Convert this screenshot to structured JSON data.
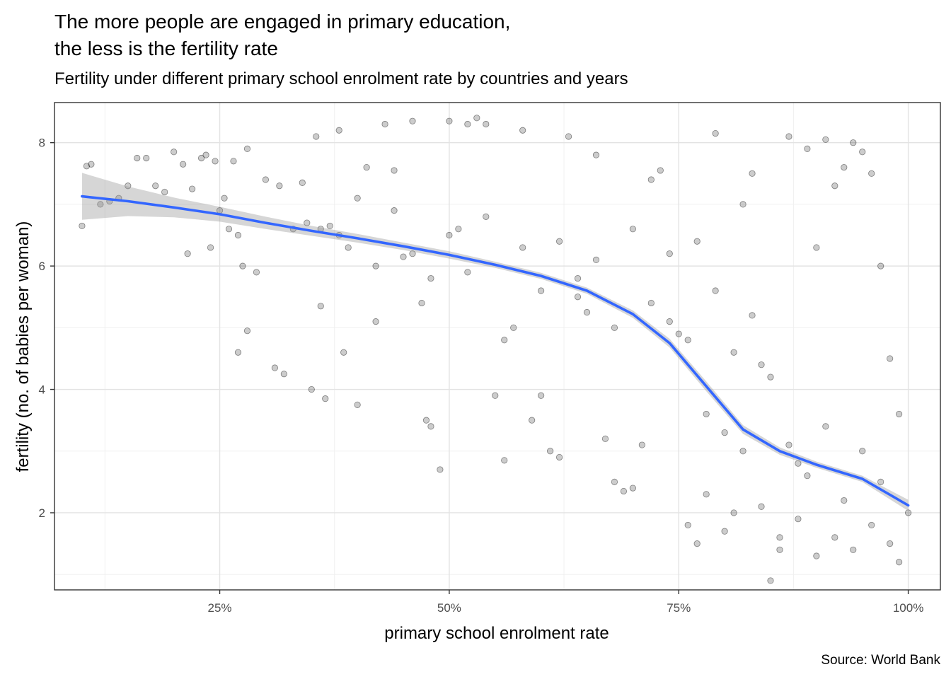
{
  "chart": {
    "title": "The more people are engaged in primary education,\nthe less is the fertility rate",
    "subtitle": "Fertility under different primary school enrolment rate by countries and years",
    "caption": "Source: World Bank"
  },
  "chart_data": {
    "type": "scatter",
    "title": "The more people are engaged in primary education,\nthe less is the fertility rate",
    "subtitle": "Fertility under different primary school enrolment rate by countries and years",
    "xlabel": "primary school enrolment rate",
    "ylabel": "fertility (no. of babies per woman)",
    "xlim": [
      0.07,
      1.035
    ],
    "ylim": [
      0.75,
      8.65
    ],
    "x_ticks": [
      0.25,
      0.5,
      0.75,
      1.0
    ],
    "x_tick_labels": [
      "25%",
      "50%",
      "75%",
      "100%"
    ],
    "y_ticks": [
      2,
      4,
      6,
      8
    ],
    "y_tick_labels": [
      "2",
      "4",
      "6",
      "8"
    ],
    "grid": true,
    "point_color": "#000000",
    "point_opacity": 0.2,
    "smooth_color": "#3366FF",
    "band_color": "#999999",
    "points": [
      [
        0.1,
        6.65
      ],
      [
        0.105,
        7.62
      ],
      [
        0.11,
        7.65
      ],
      [
        0.12,
        7.0
      ],
      [
        0.13,
        7.05
      ],
      [
        0.14,
        7.1
      ],
      [
        0.15,
        7.3
      ],
      [
        0.16,
        7.75
      ],
      [
        0.17,
        7.75
      ],
      [
        0.18,
        7.3
      ],
      [
        0.19,
        7.2
      ],
      [
        0.2,
        7.85
      ],
      [
        0.21,
        7.65
      ],
      [
        0.215,
        6.2
      ],
      [
        0.22,
        7.25
      ],
      [
        0.23,
        7.75
      ],
      [
        0.235,
        7.8
      ],
      [
        0.24,
        6.3
      ],
      [
        0.245,
        7.7
      ],
      [
        0.25,
        6.9
      ],
      [
        0.255,
        7.1
      ],
      [
        0.26,
        6.6
      ],
      [
        0.265,
        7.7
      ],
      [
        0.27,
        6.5
      ],
      [
        0.275,
        6.0
      ],
      [
        0.28,
        7.9
      ],
      [
        0.29,
        5.9
      ],
      [
        0.27,
        4.6
      ],
      [
        0.28,
        4.95
      ],
      [
        0.3,
        7.4
      ],
      [
        0.31,
        4.35
      ],
      [
        0.315,
        7.3
      ],
      [
        0.32,
        4.25
      ],
      [
        0.33,
        6.6
      ],
      [
        0.34,
        7.35
      ],
      [
        0.345,
        6.7
      ],
      [
        0.35,
        4.0
      ],
      [
        0.355,
        8.1
      ],
      [
        0.36,
        5.35
      ],
      [
        0.365,
        3.85
      ],
      [
        0.37,
        6.65
      ],
      [
        0.38,
        8.2
      ],
      [
        0.385,
        4.6
      ],
      [
        0.39,
        6.3
      ],
      [
        0.4,
        3.75
      ],
      [
        0.41,
        7.6
      ],
      [
        0.42,
        5.1
      ],
      [
        0.43,
        8.3
      ],
      [
        0.44,
        7.55
      ],
      [
        0.45,
        6.15
      ],
      [
        0.46,
        8.35
      ],
      [
        0.47,
        5.4
      ],
      [
        0.475,
        3.5
      ],
      [
        0.48,
        3.4
      ],
      [
        0.49,
        2.7
      ],
      [
        0.5,
        8.35
      ],
      [
        0.51,
        6.6
      ],
      [
        0.52,
        8.3
      ],
      [
        0.53,
        8.4
      ],
      [
        0.54,
        8.3
      ],
      [
        0.55,
        3.9
      ],
      [
        0.56,
        2.85
      ],
      [
        0.57,
        5.0
      ],
      [
        0.58,
        8.2
      ],
      [
        0.59,
        3.5
      ],
      [
        0.6,
        3.9
      ],
      [
        0.61,
        3.0
      ],
      [
        0.62,
        2.9
      ],
      [
        0.63,
        8.1
      ],
      [
        0.64,
        5.5
      ],
      [
        0.65,
        5.25
      ],
      [
        0.66,
        7.8
      ],
      [
        0.67,
        3.2
      ],
      [
        0.68,
        2.5
      ],
      [
        0.69,
        2.35
      ],
      [
        0.7,
        2.4
      ],
      [
        0.71,
        3.1
      ],
      [
        0.72,
        7.4
      ],
      [
        0.73,
        7.55
      ],
      [
        0.74,
        5.1
      ],
      [
        0.75,
        4.9
      ],
      [
        0.76,
        1.8
      ],
      [
        0.77,
        1.5
      ],
      [
        0.78,
        2.3
      ],
      [
        0.79,
        8.15
      ],
      [
        0.8,
        3.3
      ],
      [
        0.81,
        2.0
      ],
      [
        0.82,
        7.0
      ],
      [
        0.83,
        7.5
      ],
      [
        0.84,
        4.4
      ],
      [
        0.85,
        0.9
      ],
      [
        0.86,
        1.6
      ],
      [
        0.87,
        8.1
      ],
      [
        0.88,
        2.8
      ],
      [
        0.89,
        7.9
      ],
      [
        0.9,
        6.3
      ],
      [
        0.91,
        8.05
      ],
      [
        0.92,
        7.3
      ],
      [
        0.93,
        7.6
      ],
      [
        0.94,
        8.0
      ],
      [
        0.95,
        7.85
      ],
      [
        0.96,
        7.5
      ],
      [
        0.97,
        6.0
      ],
      [
        0.98,
        4.5
      ],
      [
        0.99,
        3.6
      ],
      [
        1.0,
        2.0
      ],
      [
        0.99,
        1.2
      ],
      [
        0.98,
        1.5
      ],
      [
        0.97,
        2.5
      ],
      [
        0.96,
        1.8
      ],
      [
        0.95,
        3.0
      ],
      [
        0.94,
        1.4
      ],
      [
        0.93,
        2.2
      ],
      [
        0.92,
        1.6
      ],
      [
        0.91,
        3.4
      ],
      [
        0.9,
        1.3
      ],
      [
        0.89,
        2.6
      ],
      [
        0.88,
        1.9
      ],
      [
        0.87,
        3.1
      ],
      [
        0.86,
        1.4
      ],
      [
        0.85,
        4.2
      ],
      [
        0.84,
        2.1
      ],
      [
        0.83,
        5.2
      ],
      [
        0.82,
        3.0
      ],
      [
        0.81,
        4.6
      ],
      [
        0.8,
        1.7
      ],
      [
        0.79,
        5.6
      ],
      [
        0.78,
        3.6
      ],
      [
        0.77,
        6.4
      ],
      [
        0.76,
        4.8
      ],
      [
        0.74,
        6.2
      ],
      [
        0.72,
        5.4
      ],
      [
        0.7,
        6.6
      ],
      [
        0.68,
        5.0
      ],
      [
        0.66,
        6.1
      ],
      [
        0.64,
        5.8
      ],
      [
        0.62,
        6.4
      ],
      [
        0.6,
        5.6
      ],
      [
        0.58,
        6.3
      ],
      [
        0.56,
        4.8
      ],
      [
        0.54,
        6.8
      ],
      [
        0.52,
        5.9
      ],
      [
        0.5,
        6.5
      ],
      [
        0.48,
        5.8
      ],
      [
        0.46,
        6.2
      ],
      [
        0.44,
        6.9
      ],
      [
        0.42,
        6.0
      ],
      [
        0.4,
        7.1
      ],
      [
        0.38,
        6.5
      ],
      [
        0.36,
        6.6
      ]
    ],
    "smooth_fit": [
      [
        0.1,
        7.13
      ],
      [
        0.15,
        7.05
      ],
      [
        0.2,
        6.95
      ],
      [
        0.25,
        6.84
      ],
      [
        0.3,
        6.7
      ],
      [
        0.35,
        6.57
      ],
      [
        0.4,
        6.45
      ],
      [
        0.45,
        6.32
      ],
      [
        0.5,
        6.18
      ],
      [
        0.55,
        6.02
      ],
      [
        0.6,
        5.84
      ],
      [
        0.65,
        5.6
      ],
      [
        0.7,
        5.22
      ],
      [
        0.74,
        4.75
      ],
      [
        0.78,
        4.05
      ],
      [
        0.82,
        3.35
      ],
      [
        0.86,
        3.0
      ],
      [
        0.9,
        2.78
      ],
      [
        0.95,
        2.55
      ],
      [
        1.0,
        2.12
      ]
    ],
    "band_halfwidth": [
      0.38,
      0.24,
      0.16,
      0.12,
      0.1,
      0.08,
      0.07,
      0.06,
      0.06,
      0.05,
      0.05,
      0.05,
      0.06,
      0.07,
      0.08,
      0.07,
      0.06,
      0.05,
      0.05,
      0.09
    ]
  }
}
